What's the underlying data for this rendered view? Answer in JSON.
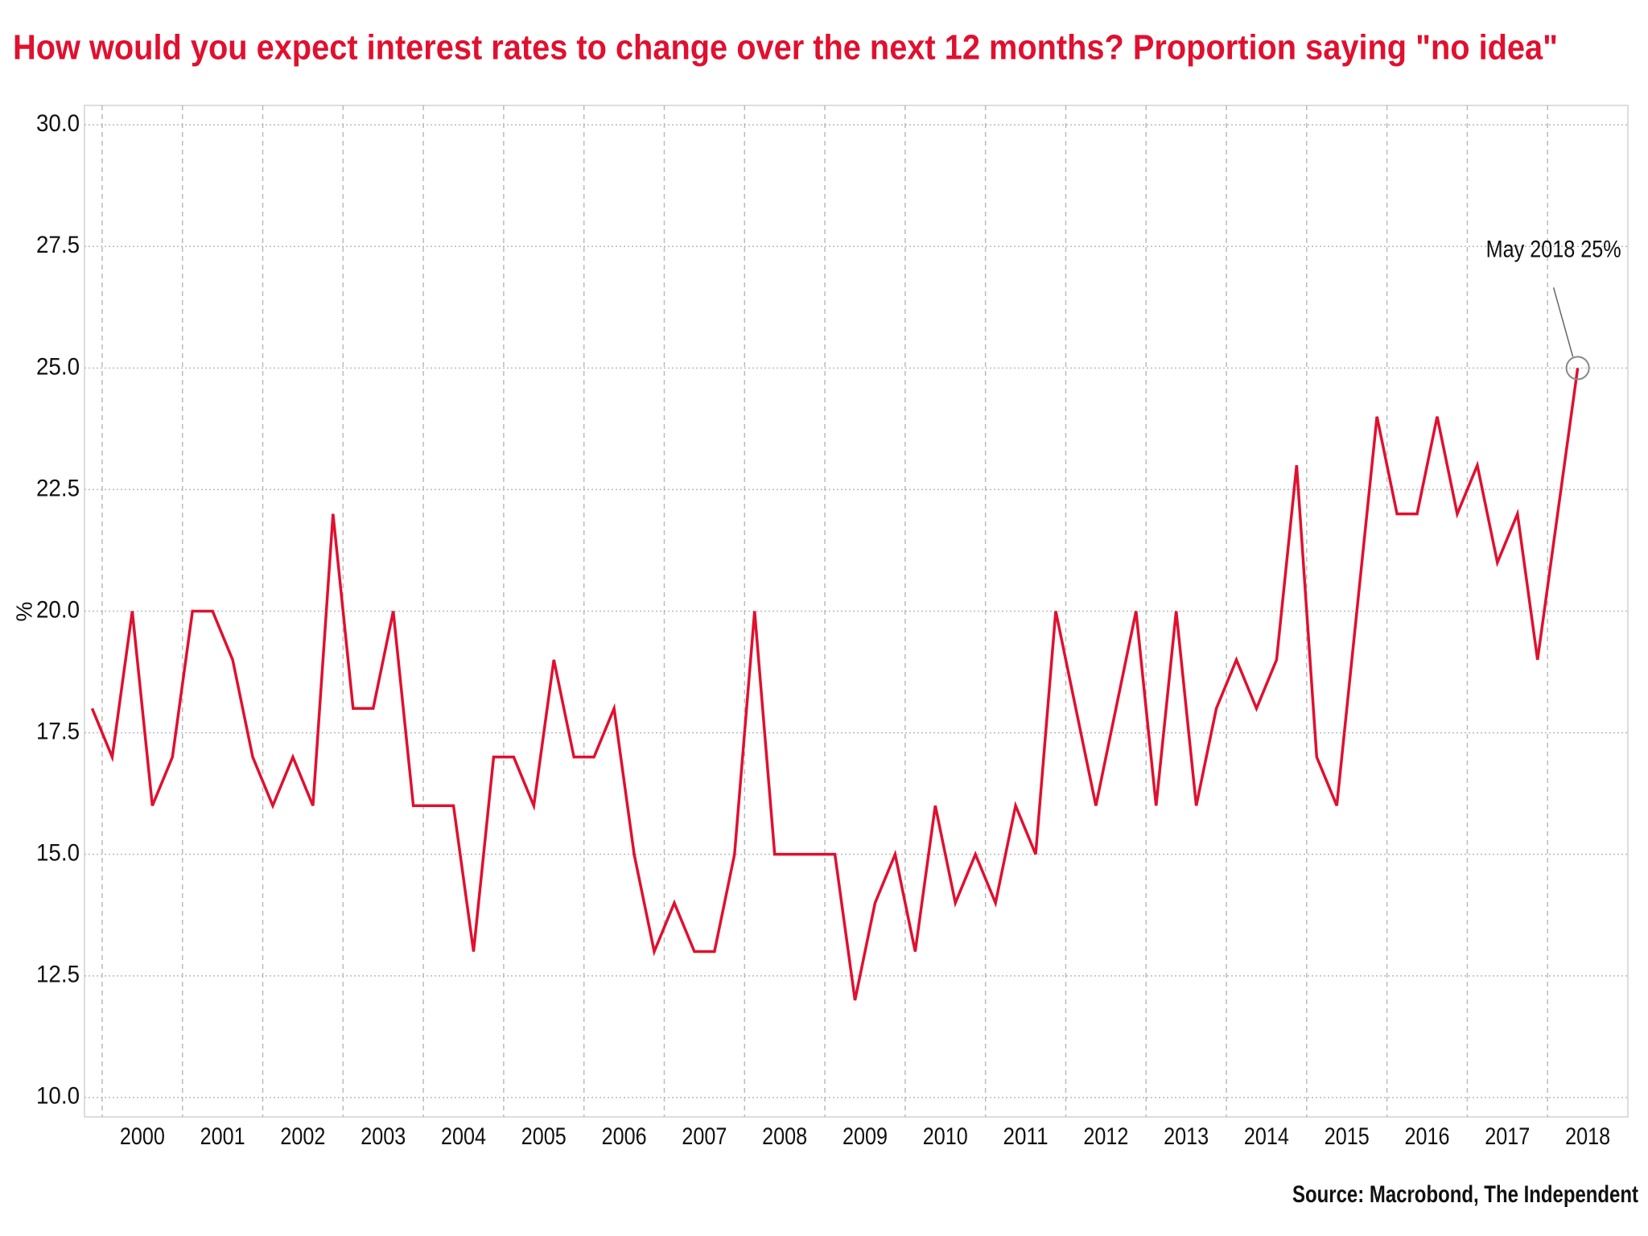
{
  "chart_data": {
    "type": "line",
    "title": "How would you expect interest rates to change over the next 12 months? Proportion saying \"no idea\"",
    "y_label": "%",
    "annotation": "May 2018 25%",
    "source": "Source: Macrobond, The Independent",
    "x": [
      1999.875,
      2000.125,
      2000.375,
      2000.625,
      2000.875,
      2001.125,
      2001.375,
      2001.625,
      2001.875,
      2002.125,
      2002.375,
      2002.625,
      2002.875,
      2003.125,
      2003.375,
      2003.625,
      2003.875,
      2004.125,
      2004.375,
      2004.625,
      2004.875,
      2005.125,
      2005.375,
      2005.625,
      2005.875,
      2006.125,
      2006.375,
      2006.625,
      2006.875,
      2007.125,
      2007.375,
      2007.625,
      2007.875,
      2008.125,
      2008.375,
      2008.625,
      2008.875,
      2009.125,
      2009.375,
      2009.625,
      2009.875,
      2010.125,
      2010.375,
      2010.625,
      2010.875,
      2011.125,
      2011.375,
      2011.625,
      2011.875,
      2012.125,
      2012.375,
      2012.625,
      2012.875,
      2013.125,
      2013.375,
      2013.625,
      2013.875,
      2014.125,
      2014.375,
      2014.625,
      2014.875,
      2015.125,
      2015.375,
      2015.625,
      2015.875,
      2016.125,
      2016.375,
      2016.625,
      2016.875,
      2017.125,
      2017.375,
      2017.625,
      2017.875,
      2018.125,
      2018.375
    ],
    "series": [
      {
        "name": "No idea",
        "color": "#e0102f",
        "values": [
          18,
          17,
          20,
          16,
          17,
          20,
          20,
          19,
          17,
          16,
          17,
          16,
          22,
          18,
          18,
          20,
          16,
          16,
          16,
          13,
          17,
          17,
          16,
          19,
          17,
          17,
          18,
          15,
          13,
          14,
          13,
          13,
          15,
          20,
          15,
          15,
          15,
          15,
          12,
          14,
          15,
          13,
          16,
          14,
          15,
          14,
          16,
          15,
          20,
          18,
          16,
          18,
          20,
          16,
          20,
          16,
          18,
          19,
          18,
          19,
          23,
          17,
          16,
          20,
          24,
          22,
          22,
          24,
          22,
          23,
          21,
          22,
          19,
          22,
          25
        ]
      }
    ],
    "xlim": [
      1999.78,
      2019.0
    ],
    "xticks": [
      {
        "value": 2000.5,
        "label": "2000"
      },
      {
        "value": 2001.5,
        "label": "2001"
      },
      {
        "value": 2002.5,
        "label": "2002"
      },
      {
        "value": 2003.5,
        "label": "2003"
      },
      {
        "value": 2004.5,
        "label": "2004"
      },
      {
        "value": 2005.5,
        "label": "2005"
      },
      {
        "value": 2006.5,
        "label": "2006"
      },
      {
        "value": 2007.5,
        "label": "2007"
      },
      {
        "value": 2008.5,
        "label": "2008"
      },
      {
        "value": 2009.5,
        "label": "2009"
      },
      {
        "value": 2010.5,
        "label": "2010"
      },
      {
        "value": 2011.5,
        "label": "2011"
      },
      {
        "value": 2012.5,
        "label": "2012"
      },
      {
        "value": 2013.5,
        "label": "2013"
      },
      {
        "value": 2014.5,
        "label": "2014"
      },
      {
        "value": 2015.5,
        "label": "2015"
      },
      {
        "value": 2016.5,
        "label": "2016"
      },
      {
        "value": 2017.5,
        "label": "2017"
      },
      {
        "value": 2018.5,
        "label": "2018"
      }
    ],
    "xgridlines": [
      2000,
      2001,
      2002,
      2003,
      2004,
      2005,
      2006,
      2007,
      2008,
      2009,
      2010,
      2011,
      2012,
      2013,
      2014,
      2015,
      2016,
      2017,
      2018
    ],
    "ylim": [
      9.6,
      30.4
    ],
    "yticks": [
      {
        "value": 10,
        "label": "10.0"
      },
      {
        "value": 12.5,
        "label": "12.5"
      },
      {
        "value": 15,
        "label": "15.0"
      },
      {
        "value": 17.5,
        "label": "17.5"
      },
      {
        "value": 20,
        "label": "20.0"
      },
      {
        "value": 22.5,
        "label": "22.5"
      },
      {
        "value": 25,
        "label": "25.0"
      },
      {
        "value": 27.5,
        "label": "27.5"
      },
      {
        "value": 30,
        "label": "30.0"
      }
    ],
    "grid": true
  }
}
